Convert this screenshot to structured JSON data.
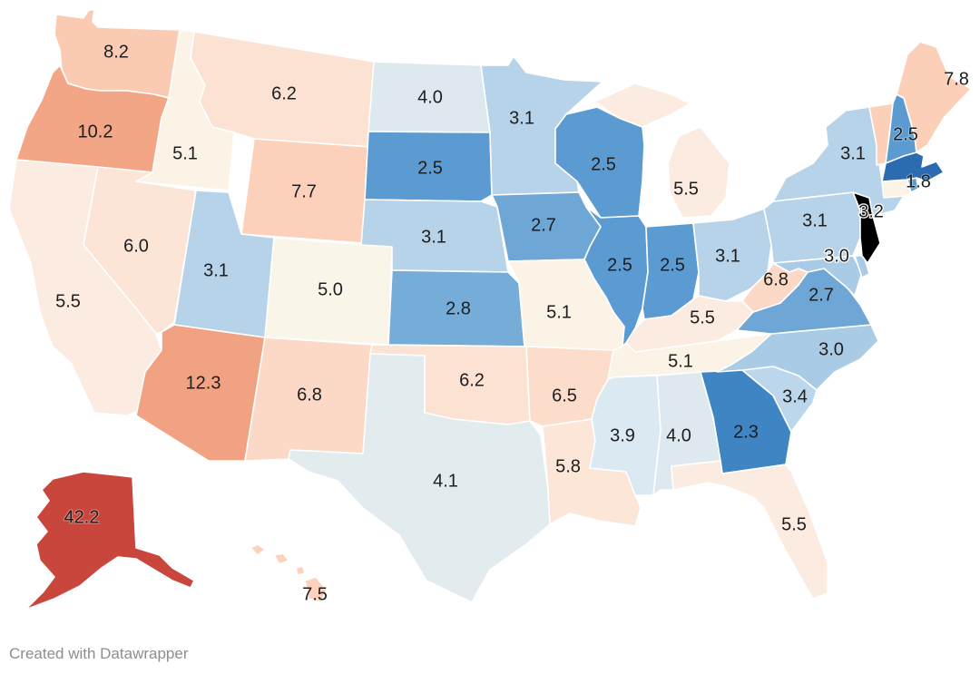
{
  "credit": "Created with Datawrapper",
  "colors": {
    "c_1_8": "#2b6cb0",
    "c_2_3": "#3f84c3",
    "c_2_5": "#5b9bd1",
    "c_2_7": "#6ea6d6",
    "c_2_8": "#76acd8",
    "c_3_0": "#a9cbe6",
    "c_3_1": "#b6d3ea",
    "c_3_4": "#bcd7ec",
    "c_3_9": "#dbe9f2",
    "c_4_0": "#dde9ee",
    "c_4_1": "#e2ecee",
    "c_5_0": "#faf5e9",
    "c_5_1": "#faf3e6",
    "c_5_5": "#fbebe0",
    "c_5_8": "#fce6d8",
    "c_6_0": "#fce5d6",
    "c_6_2": "#fce2d2",
    "c_6_5": "#fcdccb",
    "c_6_8": "#fcd8c6",
    "c_7_5": "#fcd2bd",
    "c_7_7": "#fcd0ba",
    "c_7_8": "#fccfb8",
    "c_8_2": "#fbcab3",
    "c_10_2": "#f3a686",
    "c_12_3": "#f0a282",
    "c_42_2": "#c8463b"
  },
  "chart_data": {
    "type": "choropleth",
    "region": "United States",
    "states": [
      {
        "code": "WA",
        "value": 8.2,
        "label": "8.2"
      },
      {
        "code": "OR",
        "value": 10.2,
        "label": "10.2"
      },
      {
        "code": "CA",
        "value": 5.5,
        "label": "5.5"
      },
      {
        "code": "ID",
        "value": 5.1,
        "label": "5.1"
      },
      {
        "code": "NV",
        "value": 6.0,
        "label": "6.0"
      },
      {
        "code": "MT",
        "value": 6.2,
        "label": "6.2"
      },
      {
        "code": "WY",
        "value": 7.7,
        "label": "7.7"
      },
      {
        "code": "UT",
        "value": 3.1,
        "label": "3.1"
      },
      {
        "code": "AZ",
        "value": 12.3,
        "label": "12.3"
      },
      {
        "code": "CO",
        "value": 5.0,
        "label": "5.0"
      },
      {
        "code": "NM",
        "value": 6.8,
        "label": "6.8"
      },
      {
        "code": "ND",
        "value": 4.0,
        "label": "4.0"
      },
      {
        "code": "SD",
        "value": 2.5,
        "label": "2.5"
      },
      {
        "code": "NE",
        "value": 3.1,
        "label": "3.1"
      },
      {
        "code": "KS",
        "value": 2.8,
        "label": "2.8"
      },
      {
        "code": "OK",
        "value": 6.2,
        "label": "6.2"
      },
      {
        "code": "TX",
        "value": 4.1,
        "label": "4.1"
      },
      {
        "code": "MN",
        "value": 3.1,
        "label": "3.1"
      },
      {
        "code": "IA",
        "value": 2.7,
        "label": "2.7"
      },
      {
        "code": "MO",
        "value": 5.1,
        "label": "5.1"
      },
      {
        "code": "AR",
        "value": 6.5,
        "label": "6.5"
      },
      {
        "code": "LA",
        "value": 5.8,
        "label": "5.8"
      },
      {
        "code": "WI",
        "value": 2.5,
        "label": "2.5"
      },
      {
        "code": "IL",
        "value": 2.5,
        "label": "2.5"
      },
      {
        "code": "MI",
        "value": 5.5,
        "label": "5.5"
      },
      {
        "code": "IN",
        "value": 2.5,
        "label": "2.5"
      },
      {
        "code": "OH",
        "value": 3.1,
        "label": "3.1"
      },
      {
        "code": "KY",
        "value": 5.5,
        "label": "5.5"
      },
      {
        "code": "TN",
        "value": 5.1,
        "label": "5.1"
      },
      {
        "code": "MS",
        "value": 3.9,
        "label": "3.9"
      },
      {
        "code": "AL",
        "value": 4.0,
        "label": "4.0"
      },
      {
        "code": "GA",
        "value": 2.3,
        "label": "2.3"
      },
      {
        "code": "FL",
        "value": 5.5,
        "label": "5.5"
      },
      {
        "code": "SC",
        "value": 3.4,
        "label": "3.4"
      },
      {
        "code": "NC",
        "value": 3.0,
        "label": "3.0"
      },
      {
        "code": "VA",
        "value": 2.7,
        "label": "2.7"
      },
      {
        "code": "WV",
        "value": 6.8,
        "label": "6.8"
      },
      {
        "code": "PA",
        "value": 3.1,
        "label": "3.1"
      },
      {
        "code": "NY",
        "value": 3.1,
        "label": "3.1"
      },
      {
        "code": "NJ",
        "value": 3.2,
        "label": "3.2"
      },
      {
        "code": "MD",
        "value": 3.0,
        "label": "3.0"
      },
      {
        "code": "VT",
        "value": 7.8,
        "label": ""
      },
      {
        "code": "NH",
        "value": 2.5,
        "label": "2.5"
      },
      {
        "code": "ME",
        "value": 7.8,
        "label": "7.8"
      },
      {
        "code": "MA",
        "value": 1.8,
        "label": "1.8"
      },
      {
        "code": "AK",
        "value": 42.2,
        "label": "42.2"
      },
      {
        "code": "HI",
        "value": 7.5,
        "label": "7.5"
      }
    ]
  }
}
